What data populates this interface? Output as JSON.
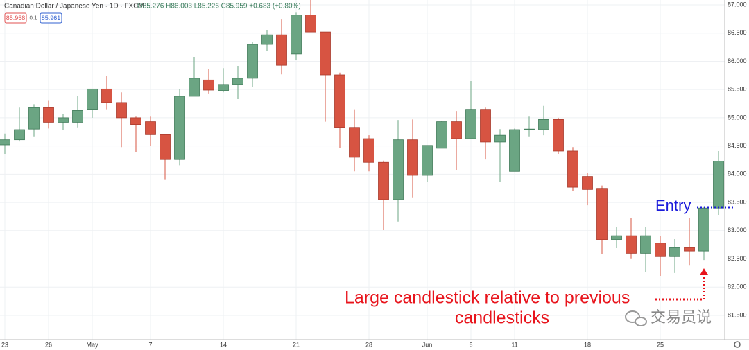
{
  "chart_data": {
    "type": "candlestick",
    "header": {
      "symbol": "Canadian Dollar / Japanese Yen · 1D · FXCM",
      "ohlc": "O85.276 H86.003 L85.226 C85.959 +0.683 (+0.80%)",
      "bid": "85.958",
      "spread": "0.1",
      "ask": "85.961"
    },
    "up_color": "#6ba583",
    "down_color": "#d75442",
    "grid": true,
    "categories": [
      "23",
      null,
      null,
      "26",
      null,
      null,
      "May",
      null,
      null,
      null,
      "7",
      null,
      null,
      null,
      null,
      "14",
      null,
      null,
      null,
      null,
      "21",
      null,
      null,
      null,
      null,
      "28",
      null,
      null,
      null,
      "Jun",
      null,
      null,
      "6",
      null,
      null,
      "11",
      null,
      null,
      null,
      null,
      "18",
      null,
      null,
      null,
      null,
      "25",
      null,
      null,
      null,
      null
    ],
    "open": [
      84.52,
      84.61,
      84.8,
      85.18,
      84.92,
      84.92,
      85.15,
      85.51,
      85.27,
      85.0,
      84.93,
      84.7,
      84.26,
      85.38,
      85.67,
      85.48,
      85.59,
      85.7,
      86.3,
      86.47,
      86.13,
      86.82,
      86.52,
      85.76,
      84.83,
      84.63,
      84.21,
      83.55,
      84.61,
      83.98,
      84.46,
      84.93,
      84.63,
      85.15,
      84.57,
      84.05,
      84.79,
      84.79,
      84.97,
      84.41,
      83.96,
      83.75,
      82.84,
      82.91,
      82.6,
      82.78,
      82.54,
      82.7,
      82.64,
      83.4
    ],
    "high": [
      84.72,
      85.18,
      85.24,
      85.3,
      85.06,
      85.39,
      85.51,
      85.74,
      85.45,
      85.02,
      85.02,
      84.7,
      85.51,
      86.08,
      85.86,
      85.88,
      85.92,
      86.35,
      86.55,
      86.74,
      86.86,
      87.09,
      86.52,
      85.8,
      85.15,
      84.69,
      84.24,
      84.96,
      84.97,
      84.51,
      84.95,
      85.12,
      85.65,
      85.18,
      84.8,
      84.81,
      85.02,
      85.21,
      85.0,
      84.48,
      84.02,
      83.8,
      83.07,
      83.22,
      83.06,
      82.91,
      82.85,
      83.22,
      83.43,
      84.41
    ],
    "low": [
      84.36,
      84.58,
      84.67,
      84.81,
      84.78,
      84.83,
      85.0,
      85.15,
      84.48,
      84.39,
      84.5,
      83.91,
      84.16,
      85.38,
      85.43,
      85.45,
      85.33,
      85.55,
      86.18,
      85.77,
      86.03,
      86.52,
      84.93,
      84.46,
      84.05,
      84.05,
      83.01,
      83.16,
      83.59,
      83.87,
      84.46,
      84.07,
      84.63,
      84.26,
      83.87,
      84.05,
      84.67,
      84.69,
      84.36,
      83.71,
      83.45,
      82.59,
      82.69,
      82.51,
      82.27,
      82.2,
      82.25,
      82.38,
      82.48,
      83.28
    ],
    "close": [
      84.61,
      84.79,
      85.18,
      84.92,
      85.0,
      85.13,
      85.51,
      85.27,
      85.0,
      84.88,
      84.7,
      84.26,
      85.38,
      85.7,
      85.49,
      85.59,
      85.7,
      86.3,
      86.47,
      85.93,
      86.82,
      86.52,
      85.76,
      84.83,
      84.3,
      84.21,
      83.55,
      84.61,
      83.98,
      84.51,
      84.93,
      84.63,
      85.15,
      84.57,
      84.69,
      84.79,
      84.8,
      84.97,
      84.41,
      83.77,
      83.73,
      82.84,
      82.91,
      82.6,
      82.91,
      82.54,
      82.7,
      82.64,
      83.4,
      84.23
    ],
    "ylim": [
      81.07,
      87.086
    ],
    "yticks": [
      {
        "value": 81.5,
        "label": "81.500"
      },
      {
        "value": 82,
        "label": "82.000"
      },
      {
        "value": 82.5,
        "label": "82.500"
      },
      {
        "value": 83,
        "label": "83.000"
      },
      {
        "value": 83.5,
        "label": "83.500"
      },
      {
        "value": 84,
        "label": "84.000"
      },
      {
        "value": 84.5,
        "label": "84.500"
      },
      {
        "value": 85,
        "label": "85.000"
      },
      {
        "value": 85.5,
        "label": "85.500"
      },
      {
        "value": 86,
        "label": "86.000"
      },
      {
        "value": 86.5,
        "label": "86.500"
      },
      {
        "value": 87,
        "label": "87.000"
      }
    ],
    "entry_label": "Entry",
    "annotation_lines": [
      "Large candlestick relative to previous",
      "candlesticks"
    ],
    "watermark": "交易员说"
  }
}
